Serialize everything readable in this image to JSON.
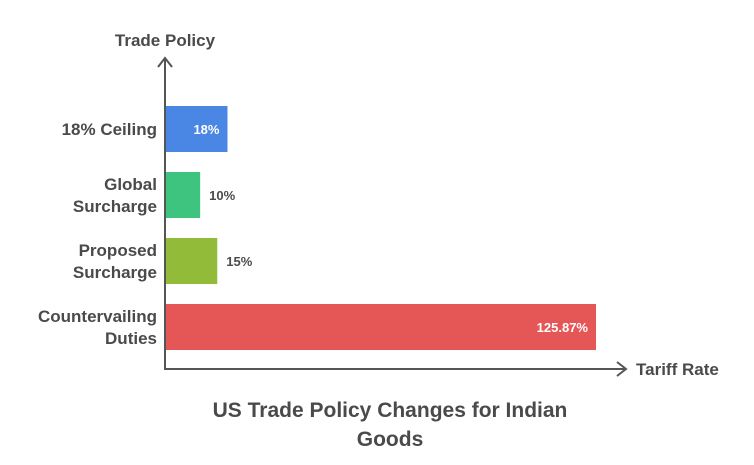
{
  "chart_data": {
    "type": "bar",
    "orientation": "horizontal",
    "title": "US Trade Policy Changes for Indian Goods",
    "title_lines": [
      "US Trade Policy Changes for Indian",
      "Goods"
    ],
    "xlabel": "Tariff Rate",
    "ylabel": "Trade Policy",
    "categories": [
      {
        "lines": [
          "18% Ceiling"
        ],
        "name": "18% Ceiling"
      },
      {
        "lines": [
          "Global",
          "Surcharge"
        ],
        "name": "Global Surcharge"
      },
      {
        "lines": [
          "Proposed",
          "Surcharge"
        ],
        "name": "Proposed Surcharge"
      },
      {
        "lines": [
          "Countervailing",
          "Duties"
        ],
        "name": "Countervailing Duties"
      }
    ],
    "values": [
      18,
      10,
      15,
      125.87
    ],
    "value_labels": [
      "18%",
      "10%",
      "15%",
      "125.87%"
    ],
    "label_inside": [
      true,
      false,
      false,
      true
    ],
    "colors": [
      "#4a86e4",
      "#3ec47f",
      "#93bb3a",
      "#e45756"
    ],
    "xlim": [
      0,
      126
    ],
    "grid": false
  }
}
